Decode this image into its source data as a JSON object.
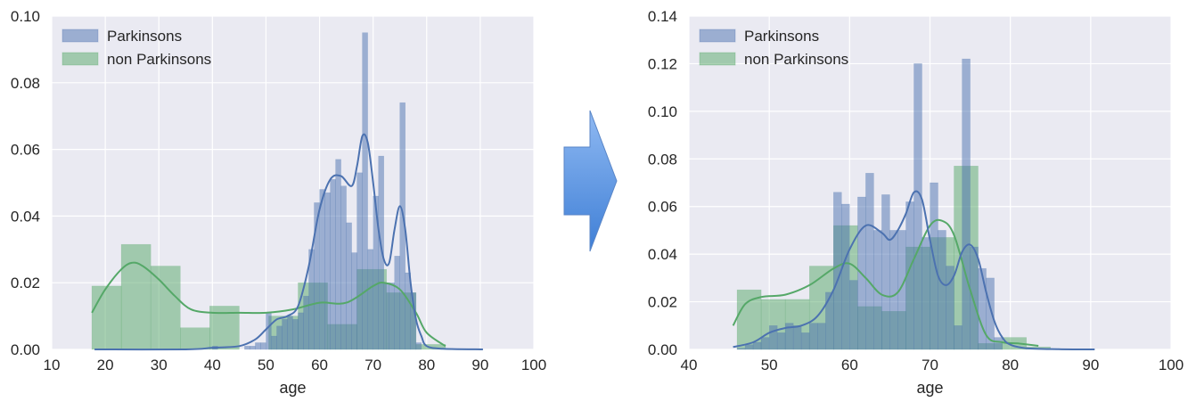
{
  "arrow_color": "#5b93e0",
  "chart_data": [
    {
      "type": "bar",
      "subtype": "histogram-with-kde",
      "xlabel": "age",
      "xlim": [
        10,
        100
      ],
      "ylim": [
        0,
        0.1
      ],
      "xticks": [
        10,
        20,
        30,
        40,
        50,
        60,
        70,
        80,
        90,
        100
      ],
      "yticks": [
        0.0,
        0.02,
        0.04,
        0.06,
        0.08,
        0.1
      ],
      "ytick_labels": [
        "0.00",
        "0.02",
        "0.04",
        "0.06",
        "0.08",
        "0.10"
      ],
      "grid": true,
      "legend_position": "top-left",
      "series": [
        {
          "name": "Parkinsons",
          "color": "#4c72b0",
          "histogram": {
            "bins": [
              [
                40,
                41,
                0.001
              ],
              [
                46,
                47,
                0.001
              ],
              [
                47,
                48,
                0.001
              ],
              [
                48,
                49,
                0.002
              ],
              [
                49,
                50,
                0.002
              ],
              [
                50,
                51,
                0.011
              ],
              [
                51,
                52,
                0.004
              ],
              [
                52,
                53,
                0.007
              ],
              [
                53,
                54,
                0.009
              ],
              [
                54,
                55,
                0.01
              ],
              [
                55,
                56,
                0.009
              ],
              [
                56,
                57,
                0.011
              ],
              [
                57,
                58,
                0.016
              ],
              [
                58,
                59,
                0.03
              ],
              [
                59,
                60,
                0.044
              ],
              [
                60,
                61,
                0.048
              ],
              [
                61,
                62,
                0.047
              ],
              [
                62,
                63,
                0.051
              ],
              [
                63,
                64,
                0.057
              ],
              [
                64,
                65,
                0.049
              ],
              [
                65,
                66,
                0.038
              ],
              [
                66,
                67,
                0.029
              ],
              [
                67,
                68,
                0.053
              ],
              [
                68,
                69,
                0.095
              ],
              [
                69,
                70,
                0.03
              ],
              [
                70,
                71,
                0.046
              ],
              [
                71,
                72,
                0.058
              ],
              [
                72,
                73,
                0.02
              ],
              [
                73,
                74,
                0.02
              ],
              [
                74,
                75,
                0.028
              ],
              [
                75,
                76,
                0.074
              ],
              [
                76,
                77,
                0.023
              ],
              [
                77,
                78,
                0.017
              ],
              [
                78,
                79,
                0.002
              ]
            ]
          },
          "kde": {
            "x": [
              18,
              35,
              40,
              45,
              48,
              50,
              52,
              54,
              56,
              58,
              60,
              62,
              64,
              66,
              67,
              68,
              69,
              70,
              71,
              72,
              73,
              74,
              75,
              76,
              77,
              78,
              79,
              80,
              83,
              90.5
            ],
            "y": [
              0,
              0,
              0.0005,
              0.001,
              0.003,
              0.006,
              0.009,
              0.01,
              0.013,
              0.025,
              0.042,
              0.051,
              0.052,
              0.049,
              0.055,
              0.064,
              0.062,
              0.05,
              0.036,
              0.027,
              0.026,
              0.036,
              0.043,
              0.036,
              0.02,
              0.009,
              0.004,
              0.001,
              0.0002,
              0
            ]
          }
        },
        {
          "name": "non Parkinsons",
          "color": "#55a868",
          "histogram": {
            "bins": [
              [
                17.5,
                23,
                0.019
              ],
              [
                23,
                28.5,
                0.0315
              ],
              [
                28.5,
                34,
                0.025
              ],
              [
                34,
                39.5,
                0.0065
              ],
              [
                39.5,
                45,
                0.013
              ],
              [
                45,
                50.5,
                0.0
              ],
              [
                50.5,
                56,
                0.01
              ],
              [
                56,
                61.5,
                0.02
              ],
              [
                61.5,
                67,
                0.0075
              ],
              [
                67,
                72.5,
                0.024
              ],
              [
                72.5,
                78,
                0.017
              ],
              [
                78,
                83.5,
                0.0015
              ]
            ]
          },
          "kde": {
            "x": [
              17.5,
              20,
              23,
              25,
              27,
              30,
              33,
              36,
              40,
              45,
              50,
              55,
              60,
              65,
              70,
              72,
              75,
              78,
              80,
              83.5
            ],
            "y": [
              0.011,
              0.018,
              0.024,
              0.026,
              0.025,
              0.021,
              0.016,
              0.012,
              0.011,
              0.011,
              0.011,
              0.012,
              0.014,
              0.014,
              0.019,
              0.02,
              0.018,
              0.011,
              0.005,
              0.001
            ]
          }
        }
      ]
    },
    {
      "type": "bar",
      "subtype": "histogram-with-kde",
      "xlabel": "age",
      "xlim": [
        40,
        100
      ],
      "ylim": [
        0,
        0.14
      ],
      "xticks": [
        40,
        50,
        60,
        70,
        80,
        90,
        100
      ],
      "yticks": [
        0.0,
        0.02,
        0.04,
        0.06,
        0.08,
        0.1,
        0.12,
        0.14
      ],
      "ytick_labels": [
        "0.00",
        "0.02",
        "0.04",
        "0.06",
        "0.08",
        "0.10",
        "0.12",
        "0.14"
      ],
      "grid": true,
      "legend_position": "top-left",
      "series": [
        {
          "name": "Parkinsons",
          "color": "#4c72b0",
          "histogram": {
            "bins": [
              [
                46,
                47,
                0.0005
              ],
              [
                47,
                48,
                0.002
              ],
              [
                48,
                49,
                0.003
              ],
              [
                49,
                50,
                0.005
              ],
              [
                50,
                51,
                0.01
              ],
              [
                51,
                52,
                0.007
              ],
              [
                52,
                53,
                0.011
              ],
              [
                53,
                54,
                0.01
              ],
              [
                54,
                55,
                0.007
              ],
              [
                55,
                56,
                0.011
              ],
              [
                56,
                57,
                0.011
              ],
              [
                57,
                58,
                0.024
              ],
              [
                58,
                59,
                0.066
              ],
              [
                59,
                60,
                0.061
              ],
              [
                60,
                61,
                0.029
              ],
              [
                61,
                62,
                0.064
              ],
              [
                62,
                63,
                0.074
              ],
              [
                63,
                64,
                0.05
              ],
              [
                64,
                65,
                0.065
              ],
              [
                65,
                66,
                0.05
              ],
              [
                66,
                67,
                0.05
              ],
              [
                67,
                68,
                0.062
              ],
              [
                68,
                69,
                0.12
              ],
              [
                69,
                70,
                0.047
              ],
              [
                70,
                71,
                0.07
              ],
              [
                71,
                72,
                0.05
              ],
              [
                72,
                73,
                0.035
              ],
              [
                73,
                74,
                0.01
              ],
              [
                74,
                75,
                0.122
              ],
              [
                75,
                76,
                0.043
              ],
              [
                76,
                77,
                0.034
              ],
              [
                77,
                78,
                0.03
              ],
              [
                78,
                79,
                0.005
              ]
            ]
          },
          "kde": {
            "x": [
              45.5,
              48,
              50,
              52,
              54,
              56,
              58,
              60,
              62,
              64,
              65,
              66,
              67,
              68,
              69,
              70,
              71,
              72,
              73,
              74,
              75,
              76,
              77,
              78,
              79,
              80,
              82,
              86,
              90.5
            ],
            "y": [
              0.001,
              0.003,
              0.007,
              0.009,
              0.01,
              0.014,
              0.025,
              0.042,
              0.052,
              0.049,
              0.046,
              0.05,
              0.057,
              0.066,
              0.063,
              0.046,
              0.031,
              0.027,
              0.031,
              0.041,
              0.044,
              0.038,
              0.024,
              0.012,
              0.005,
              0.002,
              0.0005,
              0.0001,
              0
            ]
          }
        },
        {
          "name": "non Parkinsons",
          "color": "#55a868",
          "histogram": {
            "bins": [
              [
                46,
                49,
                0.025
              ],
              [
                49,
                52,
                0.021
              ],
              [
                52,
                55,
                0.021
              ],
              [
                55,
                58,
                0.035
              ],
              [
                58,
                61,
                0.052
              ],
              [
                61,
                64,
                0.018
              ],
              [
                64,
                67,
                0.016
              ],
              [
                67,
                70,
                0.043
              ],
              [
                70,
                73,
                0.047
              ],
              [
                73,
                76,
                0.077
              ],
              [
                76,
                79,
                0.0025
              ],
              [
                79,
                82,
                0.005
              ],
              [
                82,
                85,
                0.001
              ]
            ]
          },
          "kde": {
            "x": [
              45.5,
              47,
              49,
              52,
              55,
              58,
              60,
              62,
              64,
              66,
              68,
              70,
              71.5,
              73,
              75,
              77,
              79,
              81,
              83.5
            ],
            "y": [
              0.01,
              0.019,
              0.022,
              0.023,
              0.027,
              0.034,
              0.036,
              0.03,
              0.023,
              0.024,
              0.038,
              0.052,
              0.054,
              0.048,
              0.025,
              0.006,
              0.003,
              0.0025,
              0.0015
            ]
          }
        }
      ]
    }
  ]
}
